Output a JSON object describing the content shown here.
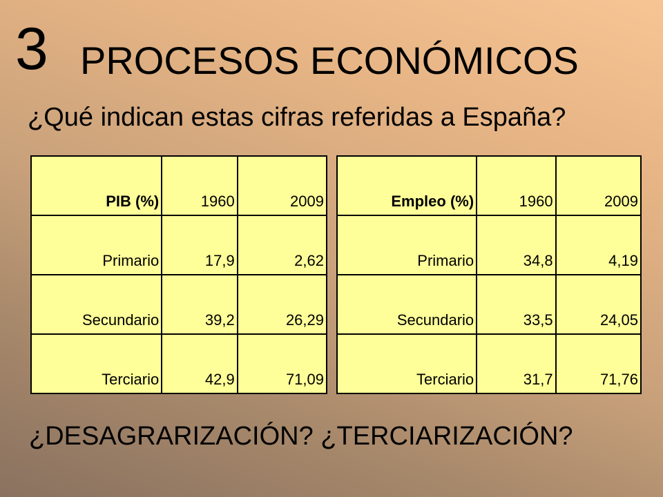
{
  "slide": {
    "number": "3",
    "title": "PROCESOS ECONÓMICOS",
    "subtitle": "¿Qué indican estas cifras referidas a España?",
    "bottom_text": "¿DESAGRARIZACIÓN? ¿TERCIARIZACIÓN?"
  },
  "tables": {
    "pib": {
      "header": [
        "PIB (%)",
        "1960",
        "2009"
      ],
      "rows": [
        [
          "Primario",
          "17,9",
          "2,62"
        ],
        [
          "Secundario",
          "39,2",
          "26,29"
        ],
        [
          "Terciario",
          "42,9",
          "71,09"
        ]
      ]
    },
    "empleo": {
      "header": [
        "Empleo (%)",
        "1960",
        "2009"
      ],
      "rows": [
        [
          "Primario",
          "34,8",
          "4,19"
        ],
        [
          "Secundario",
          "33,5",
          "24,05"
        ],
        [
          "Terciario",
          "31,7",
          "71,76"
        ]
      ]
    }
  },
  "colors": {
    "table_fill": "#ffff99",
    "background_light": "#f7c594",
    "background_dark": "#8a7260"
  }
}
